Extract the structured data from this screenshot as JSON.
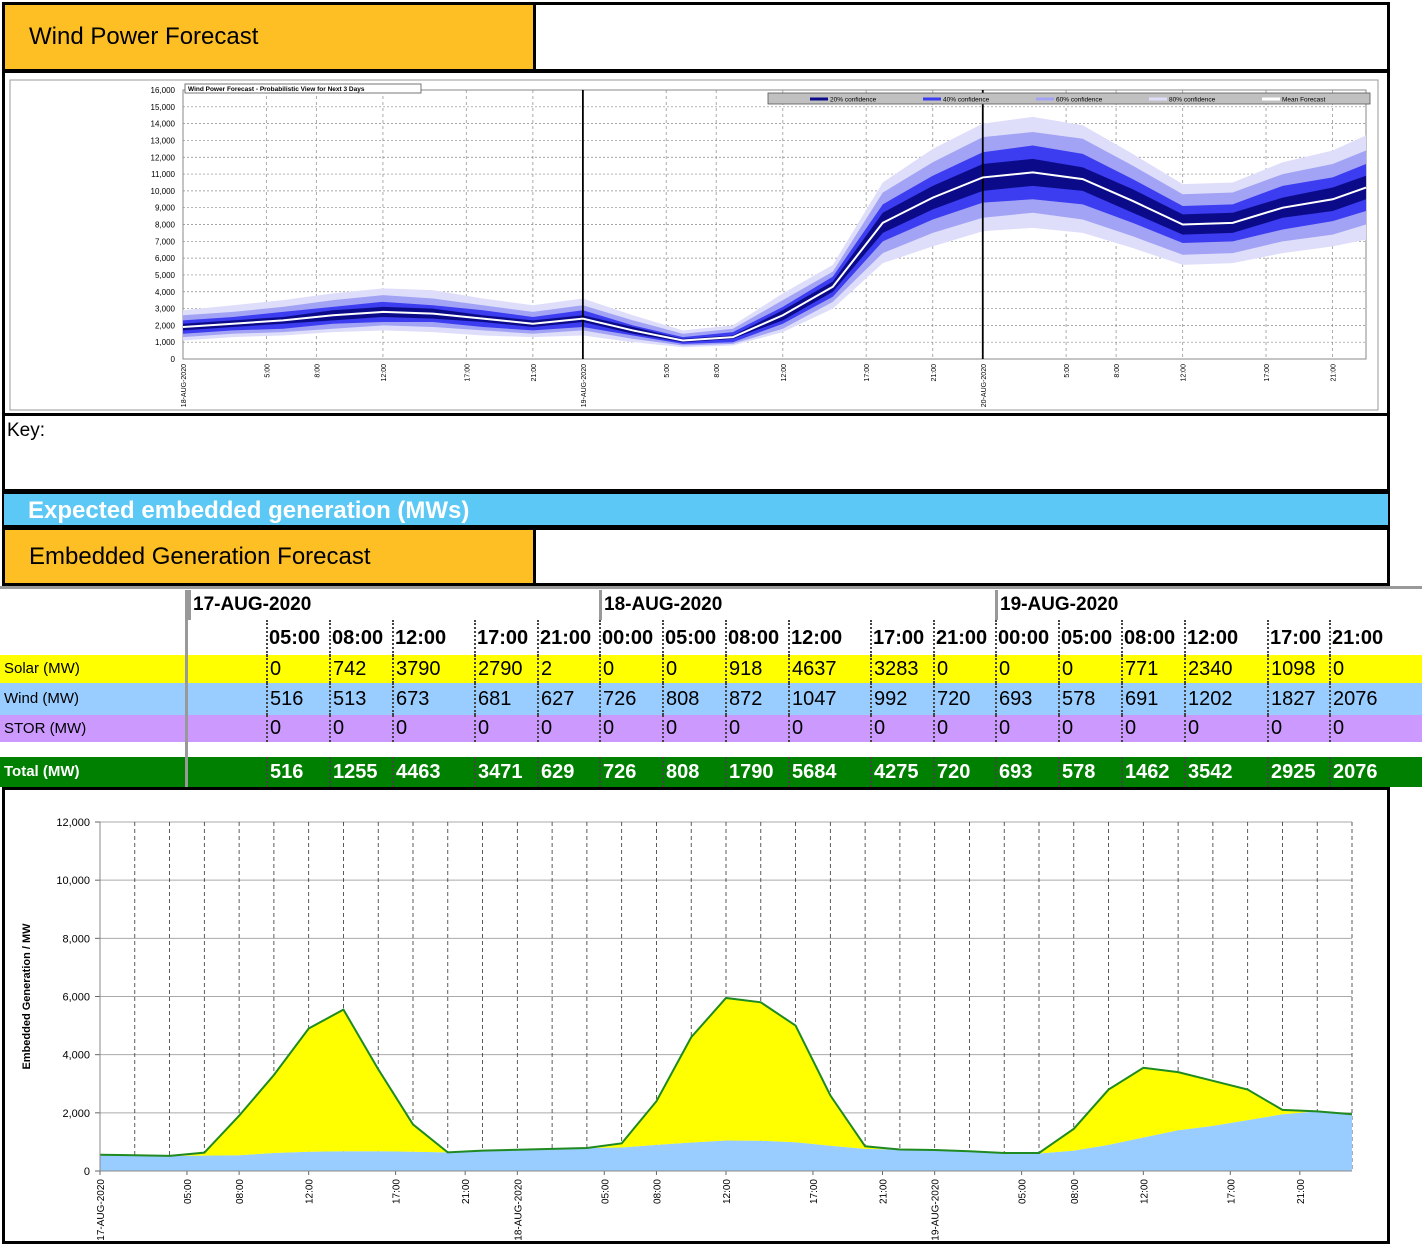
{
  "header": {
    "title": "Wind Power Forecast"
  },
  "wind_chart": {
    "type": "fan",
    "title": "Wind Power Forecast - Probabilistic View for Next 3 Days",
    "x": [
      0,
      3,
      6,
      9,
      12,
      15,
      18,
      21,
      24,
      27,
      30,
      33,
      36,
      39,
      42,
      45,
      48,
      51,
      54,
      57,
      60,
      63,
      66,
      69,
      71
    ],
    "xlim": [
      0,
      71
    ],
    "xticks": [
      {
        "value": 0,
        "label": "18-AUG-2020"
      },
      {
        "value": 5,
        "label": "5:00"
      },
      {
        "value": 8,
        "label": "8:00"
      },
      {
        "value": 12,
        "label": "12:00"
      },
      {
        "value": 17,
        "label": "17:00"
      },
      {
        "value": 21,
        "label": "21:00"
      },
      {
        "value": 24,
        "label": "19-AUG-2020"
      },
      {
        "value": 29,
        "label": "5:00"
      },
      {
        "value": 32,
        "label": "8:00"
      },
      {
        "value": 36,
        "label": "12:00"
      },
      {
        "value": 41,
        "label": "17:00"
      },
      {
        "value": 45,
        "label": "21:00"
      },
      {
        "value": 48,
        "label": "20-AUG-2020"
      },
      {
        "value": 53,
        "label": "5:00"
      },
      {
        "value": 56,
        "label": "8:00"
      },
      {
        "value": 60,
        "label": "12:00"
      },
      {
        "value": 65,
        "label": "17:00"
      },
      {
        "value": 69,
        "label": "21:00"
      }
    ],
    "ylim": [
      0,
      16000
    ],
    "yticks": [
      0,
      {
        "value": 1000,
        "label": "1,000"
      },
      {
        "value": 2000,
        "label": "2,000"
      },
      {
        "value": 3000,
        "label": "3,000"
      },
      {
        "value": 4000,
        "label": "4,000"
      },
      {
        "value": 5000,
        "label": "5,000"
      },
      {
        "value": 6000,
        "label": "6,000"
      },
      {
        "value": 7000,
        "label": "7,000"
      },
      {
        "value": 8000,
        "label": "8,000"
      },
      {
        "value": 9000,
        "label": "9,000"
      },
      {
        "value": 10000,
        "label": "10,000"
      },
      {
        "value": 11000,
        "label": "11,000"
      },
      {
        "value": 12000,
        "label": "12,000"
      },
      {
        "value": 13000,
        "label": "13,000"
      },
      {
        "value": 14000,
        "label": "14,000"
      },
      {
        "value": 15000,
        "label": "15,000"
      },
      {
        "value": 16000,
        "label": "16,000"
      }
    ],
    "grid": true,
    "bands": [
      {
        "name": "20% confidence",
        "color": "#0b0b8a",
        "lower": [
          1700,
          1900,
          2100,
          2300,
          2500,
          2400,
          2200,
          1900,
          2200,
          1500,
          1000,
          1200,
          2300,
          4000,
          7500,
          8900,
          10000,
          10300,
          10000,
          8700,
          7400,
          7500,
          8400,
          8800,
          9500
        ],
        "upper": [
          2100,
          2300,
          2500,
          2900,
          3100,
          3000,
          2600,
          2300,
          2600,
          1900,
          1200,
          1400,
          2900,
          4600,
          8700,
          10300,
          11600,
          11900,
          11400,
          10100,
          8600,
          8700,
          9600,
          10200,
          10900
        ]
      },
      {
        "name": "40% confidence",
        "color": "#3c3cf0",
        "lower": [
          1500,
          1700,
          1800,
          2100,
          2200,
          2200,
          1900,
          1700,
          1900,
          1400,
          900,
          1000,
          2100,
          3700,
          7000,
          8300,
          9300,
          9500,
          9200,
          8100,
          6900,
          7000,
          7700,
          8200,
          8800
        ],
        "upper": [
          2300,
          2500,
          2800,
          3100,
          3400,
          3200,
          2900,
          2500,
          2900,
          2000,
          1300,
          1600,
          3100,
          4900,
          9200,
          10900,
          12300,
          12700,
          12200,
          10700,
          9100,
          9200,
          10300,
          10800,
          11600
        ]
      },
      {
        "name": "60% confidence",
        "color": "#a3a3f5",
        "lower": [
          1300,
          1500,
          1600,
          1800,
          2000,
          1900,
          1700,
          1500,
          1700,
          1200,
          800,
          900,
          1800,
          3400,
          6300,
          7500,
          8400,
          8700,
          8300,
          7300,
          6200,
          6300,
          7000,
          7400,
          8000
        ],
        "upper": [
          2600,
          2800,
          3100,
          3500,
          3800,
          3600,
          3200,
          2800,
          3200,
          2300,
          1500,
          1800,
          3500,
          5200,
          9900,
          11700,
          13200,
          13500,
          13100,
          11500,
          9800,
          9900,
          11000,
          11600,
          12400
        ]
      },
      {
        "name": "80% confidence",
        "color": "#dedefb",
        "lower": [
          1100,
          1300,
          1400,
          1600,
          1700,
          1600,
          1400,
          1300,
          1400,
          1000,
          700,
          800,
          1600,
          3000,
          5700,
          6700,
          7600,
          7800,
          7500,
          6600,
          5600,
          5700,
          6300,
          6700,
          7100
        ],
        "upper": [
          2900,
          3200,
          3500,
          3900,
          4200,
          4100,
          3600,
          3200,
          3600,
          2600,
          1700,
          2000,
          3900,
          5600,
          10500,
          12500,
          14000,
          14400,
          13900,
          12200,
          10400,
          10500,
          11700,
          12400,
          13300
        ]
      }
    ],
    "series": [
      {
        "name": "Mean Forecast",
        "color": "#ffffff",
        "values": [
          1900,
          2100,
          2300,
          2600,
          2800,
          2700,
          2400,
          2100,
          2400,
          1700,
          1100,
          1300,
          2600,
          4300,
          8100,
          9600,
          10800,
          11100,
          10700,
          9400,
          8000,
          8100,
          9000,
          9500,
          10200
        ]
      }
    ]
  },
  "key": {
    "label": "Key:"
  },
  "section_banner": {
    "title": "Expected embedded generation (MWs)"
  },
  "embedded_header": {
    "title": "Embedded Generation Forecast"
  },
  "table": {
    "days": [
      {
        "date": "17-AUG-2020",
        "times": [
          "05:00",
          "08:00",
          "12:00",
          "17:00",
          "21:00"
        ]
      },
      {
        "date": "18-AUG-2020",
        "times": [
          "00:00",
          "05:00",
          "08:00",
          "12:00",
          "17:00",
          "21:00"
        ]
      },
      {
        "date": "19-AUG-2020",
        "times": [
          "00:00",
          "05:00",
          "08:00",
          "12:00",
          "17:00",
          "21:00"
        ]
      }
    ],
    "rows": [
      {
        "label": "Solar (MW)",
        "color": "#ffff00",
        "values": [
          0,
          742,
          3790,
          2790,
          2,
          0,
          0,
          918,
          4637,
          3283,
          0,
          0,
          0,
          771,
          2340,
          1098,
          0
        ]
      },
      {
        "label": "Wind (MW)",
        "color": "#99ccff",
        "values": [
          516,
          513,
          673,
          681,
          627,
          726,
          808,
          872,
          1047,
          992,
          720,
          693,
          578,
          691,
          1202,
          1827,
          2076
        ]
      },
      {
        "label": "STOR (MW)",
        "color": "#cc99ff",
        "values": [
          0,
          0,
          0,
          0,
          0,
          0,
          0,
          0,
          0,
          0,
          0,
          0,
          0,
          0,
          0,
          0,
          0
        ]
      },
      {
        "label": "Total (MW)",
        "color": "#008000",
        "values": [
          516,
          1255,
          4463,
          3471,
          629,
          726,
          808,
          1790,
          5684,
          4275,
          720,
          693,
          578,
          1462,
          3542,
          2925,
          2076
        ]
      }
    ]
  },
  "embedded_chart": {
    "type": "stacked_area",
    "y_label": "Embedded Generation / MW",
    "x": [
      0,
      2,
      4,
      6,
      8,
      10,
      12,
      14,
      16,
      18,
      20,
      22,
      24,
      26,
      28,
      30,
      32,
      34,
      36,
      38,
      40,
      42,
      44,
      46,
      48,
      50,
      52,
      54,
      56,
      58,
      60,
      62,
      64,
      66,
      68,
      70,
      72
    ],
    "xlim": [
      0,
      72
    ],
    "xticks": [
      {
        "value": 0,
        "label": "17-AUG-2020"
      },
      {
        "value": 5,
        "label": "05:00"
      },
      {
        "value": 8,
        "label": "08:00"
      },
      {
        "value": 12,
        "label": "12:00"
      },
      {
        "value": 17,
        "label": "17:00"
      },
      {
        "value": 21,
        "label": "21:00"
      },
      {
        "value": 24,
        "label": "18-AUG-2020"
      },
      {
        "value": 29,
        "label": "05:00"
      },
      {
        "value": 32,
        "label": "08:00"
      },
      {
        "value": 36,
        "label": "12:00"
      },
      {
        "value": 41,
        "label": "17:00"
      },
      {
        "value": 45,
        "label": "21:00"
      },
      {
        "value": 48,
        "label": "19-AUG-2020"
      },
      {
        "value": 53,
        "label": "05:00"
      },
      {
        "value": 56,
        "label": "08:00"
      },
      {
        "value": 60,
        "label": "12:00"
      },
      {
        "value": 65,
        "label": "17:00"
      },
      {
        "value": 69,
        "label": "21:00"
      }
    ],
    "ylim": [
      0,
      12000
    ],
    "yticks": [
      0,
      {
        "value": 2000,
        "label": "2,000"
      },
      {
        "value": 4000,
        "label": "4,000"
      },
      {
        "value": 6000,
        "label": "6,000"
      },
      {
        "value": 8000,
        "label": "8,000"
      },
      {
        "value": 10000,
        "label": "10,000"
      },
      {
        "value": 12000,
        "label": "12,000"
      }
    ],
    "grid": true,
    "stacked": true,
    "top_line_color": "#1f8a1f",
    "series": [
      {
        "color": "#99ccff",
        "values": [
          560,
          540,
          520,
          530,
          540,
          620,
          660,
          680,
          680,
          660,
          640,
          700,
          730,
          760,
          790,
          810,
          900,
          980,
          1050,
          1040,
          990,
          870,
          760,
          740,
          720,
          680,
          620,
          600,
          700,
          900,
          1150,
          1400,
          1550,
          1750,
          1950,
          2050,
          1950
        ]
      },
      {
        "color": "#ffff00",
        "values": [
          0,
          0,
          0,
          100,
          1360,
          2680,
          4240,
          4870,
          2820,
          940,
          0,
          0,
          0,
          0,
          0,
          140,
          1500,
          3620,
          4900,
          4760,
          4010,
          1730,
          90,
          0,
          0,
          0,
          0,
          20,
          750,
          1900,
          2400,
          2000,
          1550,
          1050,
          150,
          0,
          0
        ]
      }
    ]
  }
}
